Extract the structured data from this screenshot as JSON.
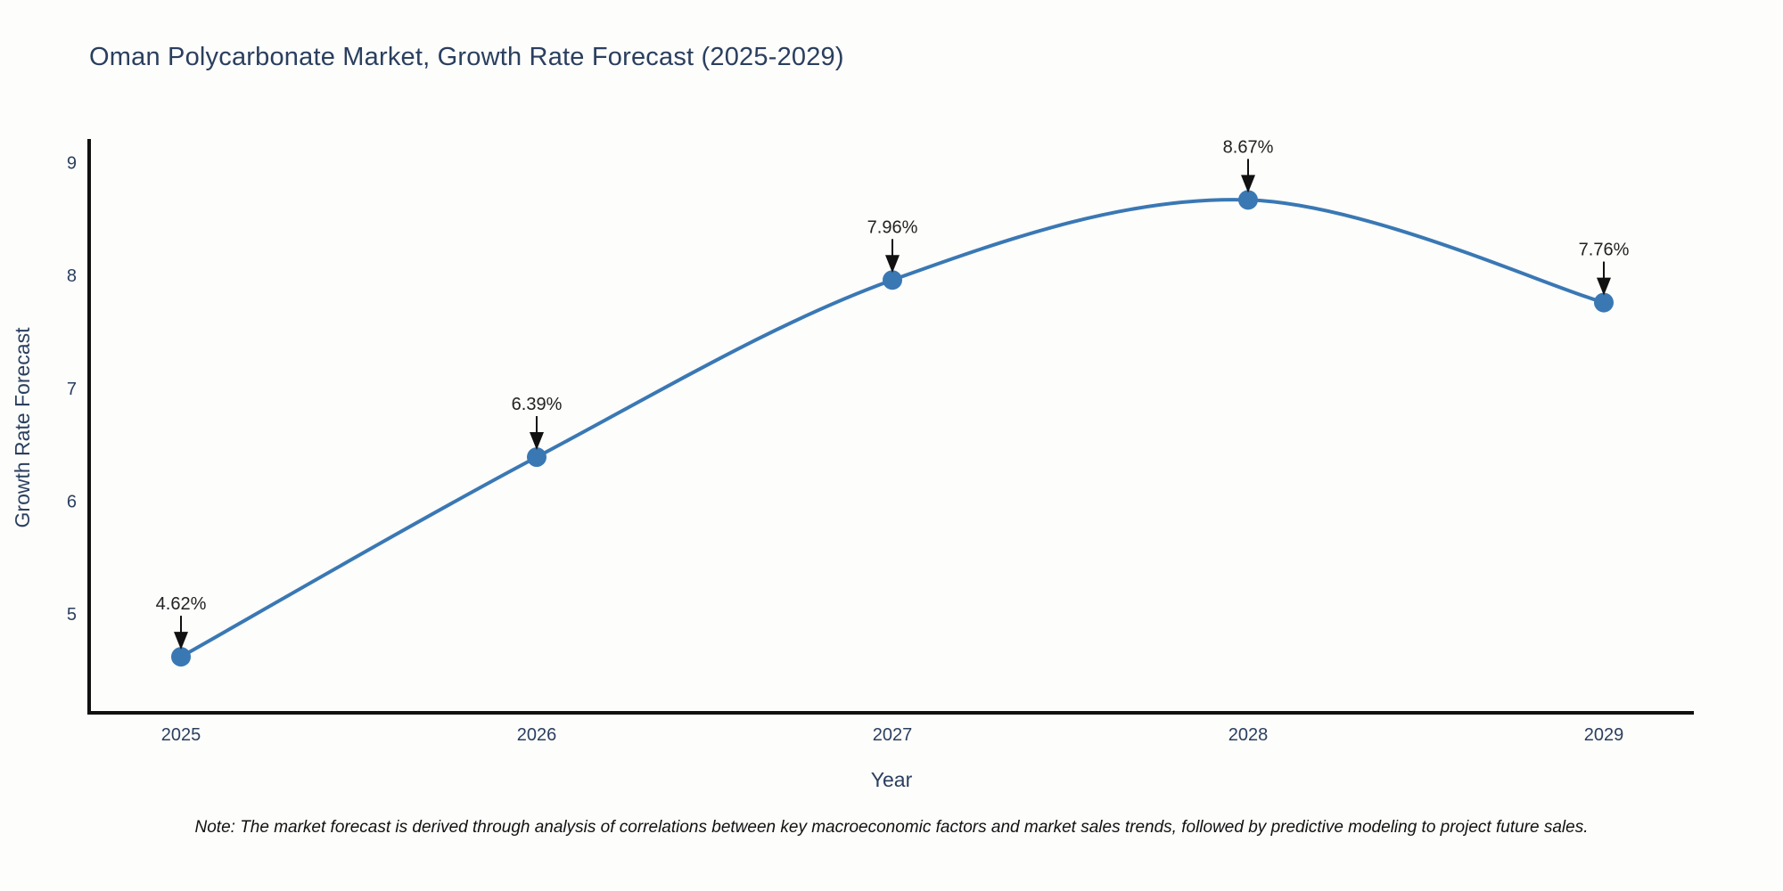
{
  "title": "Oman Polycarbonate Market, Growth Rate Forecast (2025-2029)",
  "note": "Note: The market forecast is derived through analysis of correlations between key macroeconomic factors and market sales trends, followed by predictive modeling to project future sales.",
  "colors": {
    "line": "#3a78b4",
    "marker": "#3a78b4",
    "axis": "#111111",
    "tick_text": "#2a3f5f",
    "annotation_text": "#222222",
    "arrow": "#111111",
    "title_text": "#2a3f5f"
  },
  "chart_data": {
    "type": "line",
    "title": "Oman Polycarbonate Market, Growth Rate Forecast (2025-2029)",
    "categories": [
      "2025",
      "2026",
      "2027",
      "2028",
      "2029"
    ],
    "values": [
      4.62,
      6.39,
      7.96,
      8.67,
      7.76
    ],
    "point_labels": [
      "4.62%",
      "6.39%",
      "7.96%",
      "8.67%",
      "7.76%"
    ],
    "xlabel": "Year",
    "ylabel": "Growth Rate Forecast",
    "yticks": [
      5,
      6,
      7,
      8,
      9
    ],
    "ylim": [
      4.1,
      9.2
    ],
    "line_shape": "spline",
    "marker": "circle",
    "grid": false,
    "legend_position": "none"
  }
}
